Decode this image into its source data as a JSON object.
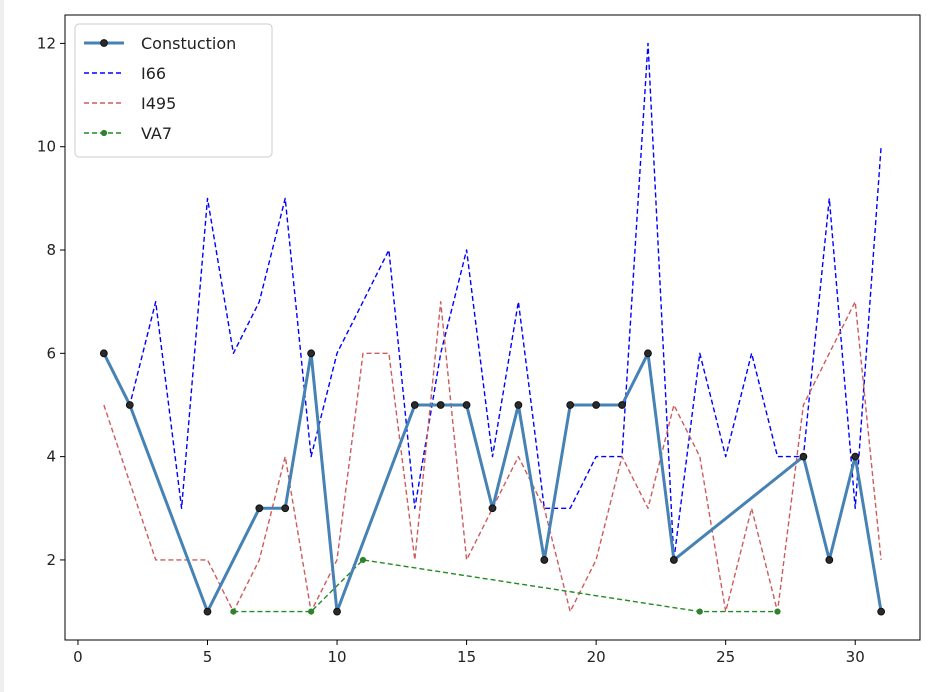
{
  "chart_data": {
    "type": "line",
    "title": "",
    "xlabel": "",
    "ylabel": "",
    "xlim": [
      -0.5,
      32.5
    ],
    "ylim": [
      0.45,
      12.55
    ],
    "xticks": [
      0,
      5,
      10,
      15,
      20,
      25,
      30
    ],
    "yticks": [
      2,
      4,
      6,
      8,
      10,
      12
    ],
    "grid": false,
    "legend": "top-left",
    "series": [
      {
        "name": "Constuction",
        "style": "solid",
        "marker": "circle",
        "color": "#4682b4",
        "x": [
          1,
          2,
          5,
          7,
          8,
          9,
          10,
          13,
          14,
          15,
          16,
          17,
          18,
          19,
          20,
          21,
          22,
          23,
          28,
          29,
          30,
          31
        ],
        "y": [
          6,
          5,
          1,
          3,
          3,
          6,
          1,
          5,
          5,
          5,
          3,
          5,
          2,
          5,
          5,
          5,
          6,
          2,
          4,
          2,
          4,
          1
        ]
      },
      {
        "name": "I66",
        "style": "dashed",
        "marker": "none",
        "color": "#0000ff",
        "x": [
          1,
          2,
          3,
          4,
          5,
          6,
          7,
          8,
          9,
          10,
          11,
          12,
          13,
          14,
          15,
          16,
          17,
          18,
          19,
          20,
          21,
          22,
          23,
          24,
          25,
          26,
          27,
          28,
          29,
          30,
          31
        ],
        "y": [
          6,
          5,
          7,
          3,
          9,
          6,
          7,
          9,
          4,
          6,
          7,
          8,
          3,
          6,
          8,
          4,
          7,
          3,
          3,
          4,
          4,
          12,
          2,
          6,
          4,
          6,
          4,
          4,
          9,
          3,
          10
        ]
      },
      {
        "name": "I495",
        "style": "dashed",
        "marker": "none",
        "color": "#cd5c5c",
        "x": [
          1,
          2,
          3,
          4,
          5,
          6,
          7,
          8,
          9,
          10,
          11,
          12,
          13,
          14,
          15,
          16,
          17,
          18,
          19,
          20,
          21,
          22,
          23,
          24,
          25,
          26,
          27,
          28,
          29,
          30,
          31
        ],
        "y": [
          5,
          3.5,
          2,
          2,
          2,
          1,
          2,
          4,
          1,
          2,
          6,
          6,
          2,
          7,
          2,
          3,
          4,
          3,
          1,
          2,
          4,
          3,
          5,
          4,
          1,
          3,
          1,
          5,
          6,
          7,
          2
        ]
      },
      {
        "name": "VA7",
        "style": "dashed",
        "marker": "circle-small",
        "color": "#228b22",
        "x": [
          6,
          9,
          11,
          24,
          27
        ],
        "y": [
          1,
          1,
          2,
          1,
          1
        ]
      }
    ]
  }
}
